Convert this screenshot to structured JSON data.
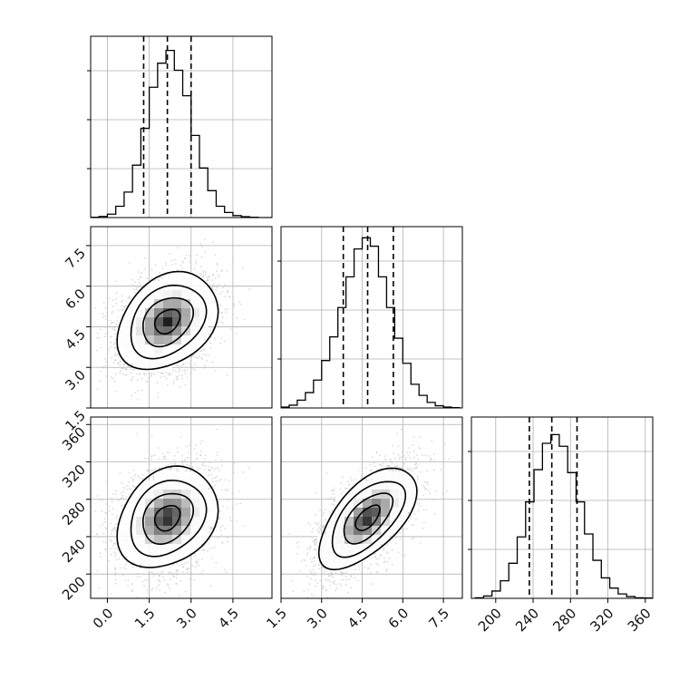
{
  "chart_data": {
    "type": "corner",
    "grid": true,
    "parameters": [
      {
        "label": "",
        "mean": 2.15,
        "std": 0.9,
        "quantiles": [
          1.3,
          2.15,
          3.0
        ],
        "range": [
          -0.6,
          5.9
        ],
        "ticks": [
          0.0,
          1.5,
          3.0,
          4.5
        ],
        "tick_labels": [
          "0.0",
          "1.5",
          "3.0",
          "4.5"
        ]
      },
      {
        "label": "",
        "mean": 4.7,
        "std": 0.9,
        "quantiles": [
          3.8,
          4.7,
          5.65
        ],
        "range": [
          1.5,
          8.2
        ],
        "ticks": [
          1.5,
          3.0,
          4.5,
          6.0,
          7.5
        ],
        "tick_labels": [
          "1.5",
          "3.0",
          "4.5",
          "6.0",
          "7.5"
        ]
      },
      {
        "label": "",
        "mean": 260,
        "std": 27,
        "quantiles": [
          236,
          260,
          287
        ],
        "range": [
          174,
          368
        ],
        "ticks": [
          200,
          240,
          280,
          320,
          360
        ],
        "tick_labels": [
          "200",
          "240",
          "280",
          "320",
          "360"
        ]
      }
    ],
    "correlations": [
      [
        1.0,
        0.3,
        0.25
      ],
      [
        0.3,
        1.0,
        0.6
      ],
      [
        0.25,
        0.6,
        1.0
      ]
    ],
    "histograms": {
      "p0": {
        "edges": [
          -0.6,
          -0.3,
          0.0,
          0.3,
          0.6,
          0.9,
          1.2,
          1.5,
          1.8,
          2.1,
          2.4,
          2.7,
          3.0,
          3.3,
          3.6,
          3.9,
          4.2,
          4.5,
          4.8,
          5.1,
          5.4,
          5.7,
          6.0
        ],
        "counts": [
          1,
          4,
          12,
          40,
          90,
          185,
          315,
          460,
          545,
          590,
          520,
          430,
          290,
          175,
          95,
          40,
          18,
          7,
          3,
          1,
          0,
          0
        ],
        "ymax": 640
      },
      "p1": {
        "edges": [
          1.5,
          1.8,
          2.1,
          2.4,
          2.7,
          3.0,
          3.3,
          3.6,
          3.9,
          4.2,
          4.5,
          4.8,
          5.1,
          5.4,
          5.7,
          6.0,
          6.3,
          6.6,
          6.9,
          7.2,
          7.5,
          7.8,
          8.1
        ],
        "counts": [
          3,
          10,
          28,
          55,
          100,
          170,
          255,
          360,
          470,
          570,
          610,
          580,
          470,
          360,
          250,
          160,
          85,
          45,
          20,
          8,
          3,
          1
        ],
        "ymax": 650
      },
      "p2": {
        "edges": [
          178,
          187,
          196,
          205,
          214,
          223,
          232,
          241,
          250,
          259,
          268,
          277,
          286,
          295,
          304,
          313,
          322,
          331,
          340,
          349,
          358,
          367
        ],
        "counts": [
          2,
          8,
          25,
          60,
          120,
          210,
          330,
          440,
          530,
          560,
          520,
          430,
          330,
          220,
          130,
          70,
          35,
          15,
          6,
          2,
          1
        ],
        "ymax": 620
      }
    },
    "scatter_points": 3000,
    "contour_levels": [
      0.5,
      1.0,
      1.5,
      2.0
    ],
    "colors": {
      "line": "#000000",
      "scatter": "#bdbdbd",
      "grid": "#b0b0b0",
      "frame": "#000000"
    }
  }
}
